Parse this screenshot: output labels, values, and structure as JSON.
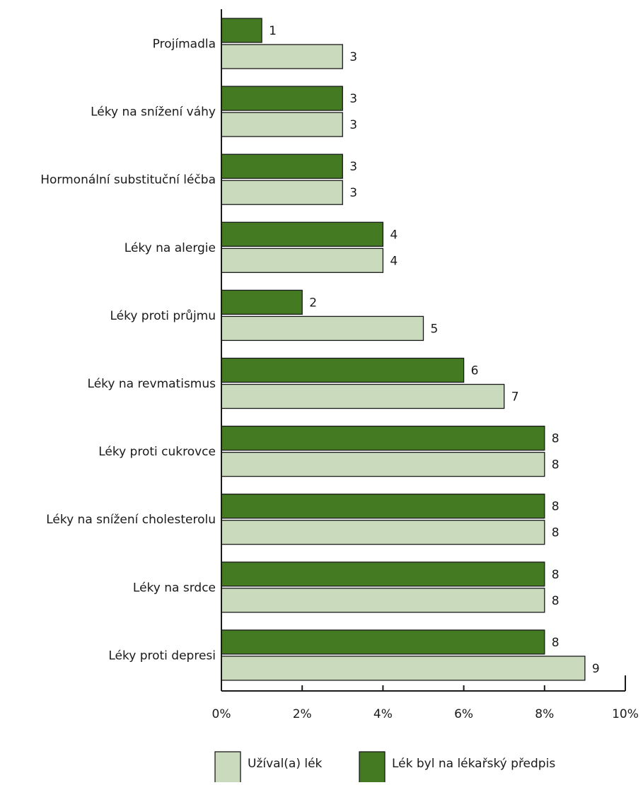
{
  "chart_data": {
    "type": "bar",
    "orientation": "horizontal",
    "categories": [
      "Projímadla",
      "Léky na snížení váhy",
      "Hormonální substituční léčba",
      "Léky na alergie",
      "Léky proti průjmu",
      "Léky na revmatismus",
      "Léky proti cukrovce",
      "Léky na snížení cholesterolu",
      "Léky na srdce",
      "Léky proti depresi"
    ],
    "series": [
      {
        "name": "Lék byl na lékařský předpis",
        "color": "#437a22",
        "values": [
          1,
          3,
          3,
          4,
          2,
          6,
          8,
          8,
          8,
          8
        ]
      },
      {
        "name": "Užíval(a) lék",
        "color": "#c9dbbc",
        "values": [
          3,
          3,
          3,
          4,
          5,
          7,
          8,
          8,
          8,
          9
        ]
      }
    ],
    "xlim": [
      0,
      10
    ],
    "x_ticks": [
      "0%",
      "2%",
      "4%",
      "6%",
      "8%",
      "10%"
    ],
    "x_tick_values": [
      0,
      2,
      4,
      6,
      8,
      10
    ],
    "title": "",
    "xlabel": "",
    "ylabel": "",
    "grid": false,
    "legend": {
      "placement": "bottom",
      "items": [
        {
          "label": "Užíval(a) lék",
          "color": "#c9dbbc"
        },
        {
          "label": "Lék byl na lékařský předpis",
          "color": "#437a22"
        }
      ]
    }
  }
}
